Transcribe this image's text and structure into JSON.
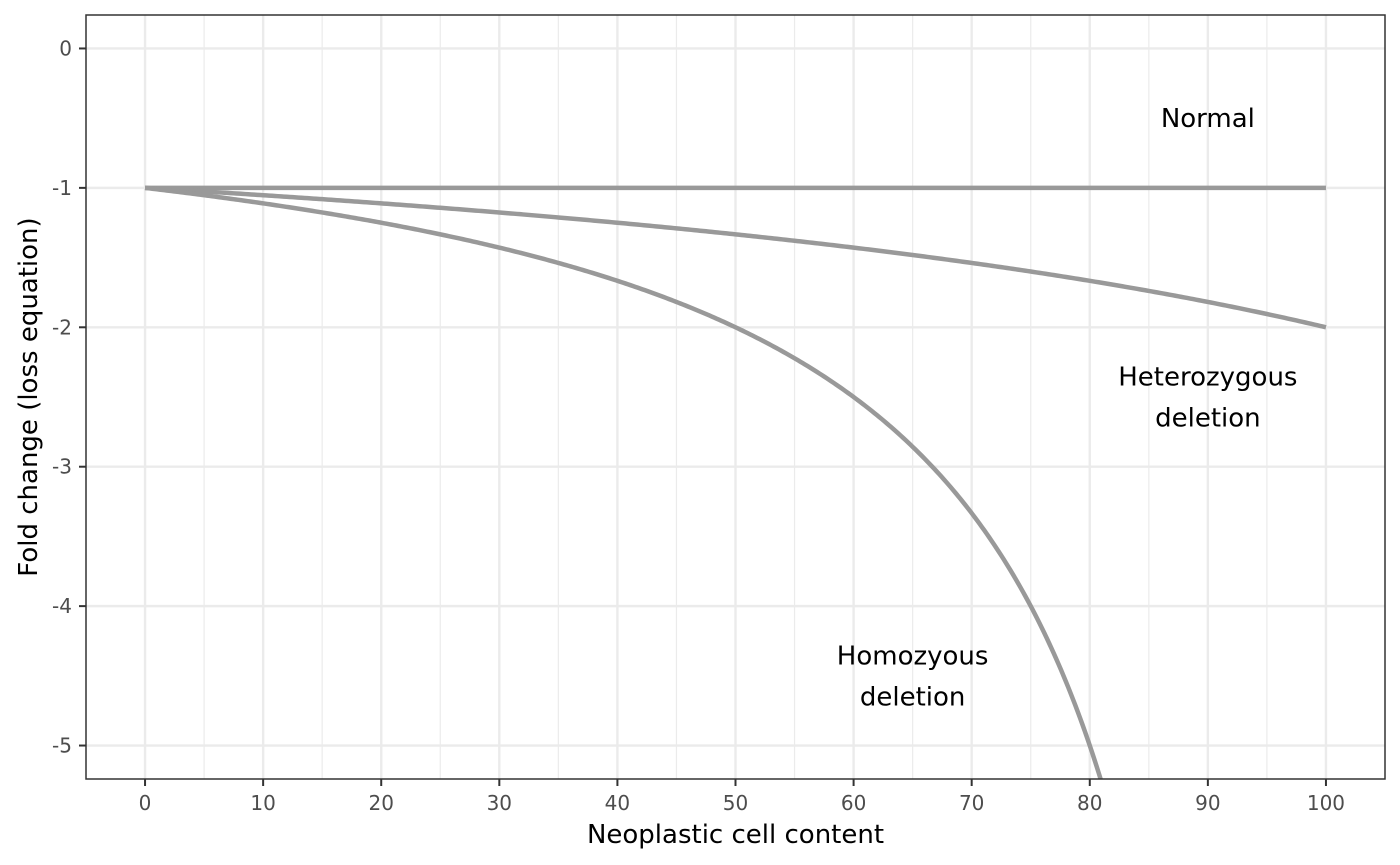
{
  "chart_data": {
    "type": "line",
    "title": "",
    "xlabel": "Neoplastic cell content",
    "ylabel": "Fold change (loss equation)",
    "xlim": [
      -5,
      105
    ],
    "ylim": [
      -5.24,
      0.24
    ],
    "x_ticks": [
      0,
      10,
      20,
      30,
      40,
      50,
      60,
      70,
      80,
      90,
      100
    ],
    "x_minor": [
      5,
      15,
      25,
      35,
      45,
      55,
      65,
      75,
      85,
      95
    ],
    "y_ticks": [
      0,
      -1,
      -2,
      -3,
      -4,
      -5
    ],
    "y_tick_labels": [
      "0",
      "-1",
      "-2",
      "-3",
      "-4",
      "-5"
    ],
    "grid": true,
    "line_color": "#999999",
    "series": [
      {
        "name": "Normal",
        "equation": "-1",
        "x": [
          0,
          100
        ],
        "y": [
          -1,
          -1
        ]
      },
      {
        "name": "Heterozygous deletion",
        "equation": "-1 / (1 - 0.5 * x/100)",
        "x": [
          0,
          10,
          20,
          30,
          40,
          50,
          60,
          70,
          80,
          90,
          100
        ],
        "y": [
          -1,
          -1.053,
          -1.111,
          -1.176,
          -1.25,
          -1.333,
          -1.429,
          -1.538,
          -1.667,
          -1.818,
          -2
        ]
      },
      {
        "name": "Homozyous deletion",
        "equation": "-1 / (1 - x/100)",
        "x": [
          0,
          10,
          20,
          30,
          40,
          50,
          60,
          70,
          80,
          81
        ],
        "y": [
          -1,
          -1.111,
          -1.25,
          -1.429,
          -1.667,
          -2,
          -2.5,
          -3.333,
          -5,
          -5.263
        ]
      }
    ],
    "annotations": [
      {
        "lines": [
          "Normal"
        ],
        "x": 90,
        "y": -0.5
      },
      {
        "lines": [
          "Heterozygous",
          "deletion"
        ],
        "x": 90,
        "y": -2.5
      },
      {
        "lines": [
          "Homozyous",
          "deletion"
        ],
        "x": 65,
        "y": -4.5
      }
    ]
  }
}
